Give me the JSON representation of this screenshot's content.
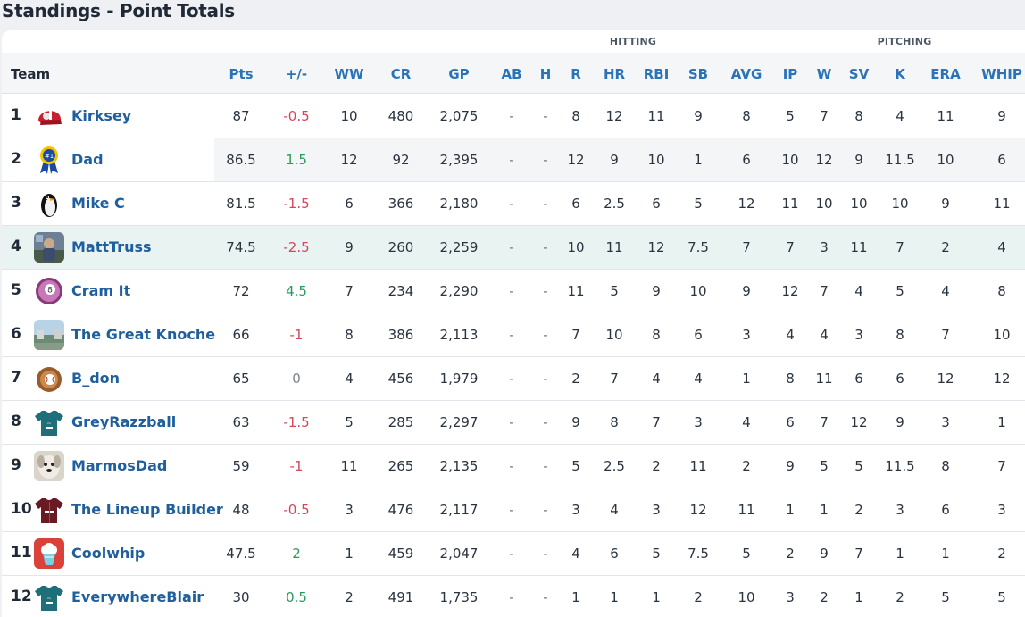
{
  "page": {
    "title": "Standings - Point Totals"
  },
  "groups": {
    "hitting": "HITTING",
    "pitching": "PITCHING"
  },
  "columns": [
    "Team",
    "Pts",
    "+/-",
    "WW",
    "CR",
    "GP",
    "AB",
    "H",
    "R",
    "HR",
    "RBI",
    "SB",
    "AVG",
    "IP",
    "W",
    "SV",
    "K",
    "ERA",
    "WHIP"
  ],
  "rows": [
    {
      "rank": "1",
      "team": "Kirksey",
      "avatar": "batting-helmet",
      "pts": "87",
      "pm": "-0.5",
      "ww": "10",
      "cr": "480",
      "gp": "2,075",
      "ab": "-",
      "h": "-",
      "r": "8",
      "hr": "12",
      "rbi": "11",
      "sb": "9",
      "avg": "8",
      "ip": "5",
      "w": "7",
      "sv": "8",
      "k": "4",
      "era": "11",
      "whip": "9"
    },
    {
      "rank": "2",
      "team": "Dad",
      "avatar": "ribbon-award",
      "pts": "86.5",
      "pm": "1.5",
      "ww": "12",
      "cr": "92",
      "gp": "2,395",
      "ab": "-",
      "h": "-",
      "r": "12",
      "hr": "9",
      "rbi": "10",
      "sb": "1",
      "avg": "6",
      "ip": "10",
      "w": "12",
      "sv": "9",
      "k": "11.5",
      "era": "10",
      "whip": "6"
    },
    {
      "rank": "3",
      "team": "Mike C",
      "avatar": "penguin",
      "pts": "81.5",
      "pm": "-1.5",
      "ww": "6",
      "cr": "366",
      "gp": "2,180",
      "ab": "-",
      "h": "-",
      "r": "6",
      "hr": "2.5",
      "rbi": "6",
      "sb": "5",
      "avg": "12",
      "ip": "11",
      "w": "10",
      "sv": "10",
      "k": "10",
      "era": "9",
      "whip": "11"
    },
    {
      "rank": "4",
      "team": "MattTruss",
      "avatar": "photo",
      "pts": "74.5",
      "pm": "-2.5",
      "ww": "9",
      "cr": "260",
      "gp": "2,259",
      "ab": "-",
      "h": "-",
      "r": "10",
      "hr": "11",
      "rbi": "12",
      "sb": "7.5",
      "avg": "7",
      "ip": "7",
      "w": "3",
      "sv": "11",
      "k": "7",
      "era": "2",
      "whip": "4"
    },
    {
      "rank": "5",
      "team": "Cram It",
      "avatar": "eight-ball",
      "pts": "72",
      "pm": "4.5",
      "ww": "7",
      "cr": "234",
      "gp": "2,290",
      "ab": "-",
      "h": "-",
      "r": "11",
      "hr": "5",
      "rbi": "9",
      "sb": "10",
      "avg": "9",
      "ip": "12",
      "w": "7",
      "sv": "4",
      "k": "5",
      "era": "4",
      "whip": "8"
    },
    {
      "rank": "6",
      "team": "The Great Knoche",
      "avatar": "landscape",
      "pts": "66",
      "pm": "-1",
      "ww": "8",
      "cr": "386",
      "gp": "2,113",
      "ab": "-",
      "h": "-",
      "r": "7",
      "hr": "10",
      "rbi": "8",
      "sb": "6",
      "avg": "3",
      "ip": "4",
      "w": "4",
      "sv": "3",
      "k": "8",
      "era": "7",
      "whip": "10"
    },
    {
      "rank": "7",
      "team": "B_don",
      "avatar": "baseball-glove",
      "pts": "65",
      "pm": "0",
      "ww": "4",
      "cr": "456",
      "gp": "1,979",
      "ab": "-",
      "h": "-",
      "r": "2",
      "hr": "7",
      "rbi": "4",
      "sb": "4",
      "avg": "1",
      "ip": "8",
      "w": "11",
      "sv": "6",
      "k": "6",
      "era": "12",
      "whip": "12"
    },
    {
      "rank": "8",
      "team": "GreyRazzball",
      "avatar": "teal-jersey",
      "pts": "63",
      "pm": "-1.5",
      "ww": "5",
      "cr": "285",
      "gp": "2,297",
      "ab": "-",
      "h": "-",
      "r": "9",
      "hr": "8",
      "rbi": "7",
      "sb": "3",
      "avg": "4",
      "ip": "6",
      "w": "7",
      "sv": "12",
      "k": "9",
      "era": "3",
      "whip": "1"
    },
    {
      "rank": "9",
      "team": "MarmosDad",
      "avatar": "dog",
      "pts": "59",
      "pm": "-1",
      "ww": "11",
      "cr": "265",
      "gp": "2,135",
      "ab": "-",
      "h": "-",
      "r": "5",
      "hr": "2.5",
      "rbi": "2",
      "sb": "11",
      "avg": "2",
      "ip": "9",
      "w": "5",
      "sv": "5",
      "k": "11.5",
      "era": "8",
      "whip": "7"
    },
    {
      "rank": "10",
      "team": "The Lineup Builder",
      "avatar": "maroon-jersey",
      "pts": "48",
      "pm": "-0.5",
      "ww": "3",
      "cr": "476",
      "gp": "2,117",
      "ab": "-",
      "h": "-",
      "r": "3",
      "hr": "4",
      "rbi": "3",
      "sb": "12",
      "avg": "11",
      "ip": "1",
      "w": "1",
      "sv": "2",
      "k": "3",
      "era": "6",
      "whip": "3"
    },
    {
      "rank": "11",
      "team": "Coolwhip",
      "avatar": "ice-cream",
      "pts": "47.5",
      "pm": "2",
      "ww": "1",
      "cr": "459",
      "gp": "2,047",
      "ab": "-",
      "h": "-",
      "r": "4",
      "hr": "6",
      "rbi": "5",
      "sb": "7.5",
      "avg": "5",
      "ip": "2",
      "w": "9",
      "sv": "7",
      "k": "1",
      "era": "1",
      "whip": "2"
    },
    {
      "rank": "12",
      "team": "EverywhereBlair",
      "avatar": "teal-jersey",
      "pts": "30",
      "pm": "0.5",
      "ww": "2",
      "cr": "491",
      "gp": "1,735",
      "ab": "-",
      "h": "-",
      "r": "1",
      "hr": "1",
      "rbi": "1",
      "sb": "2",
      "avg": "10",
      "ip": "3",
      "w": "2",
      "sv": "1",
      "k": "2",
      "era": "5",
      "whip": "5"
    }
  ]
}
